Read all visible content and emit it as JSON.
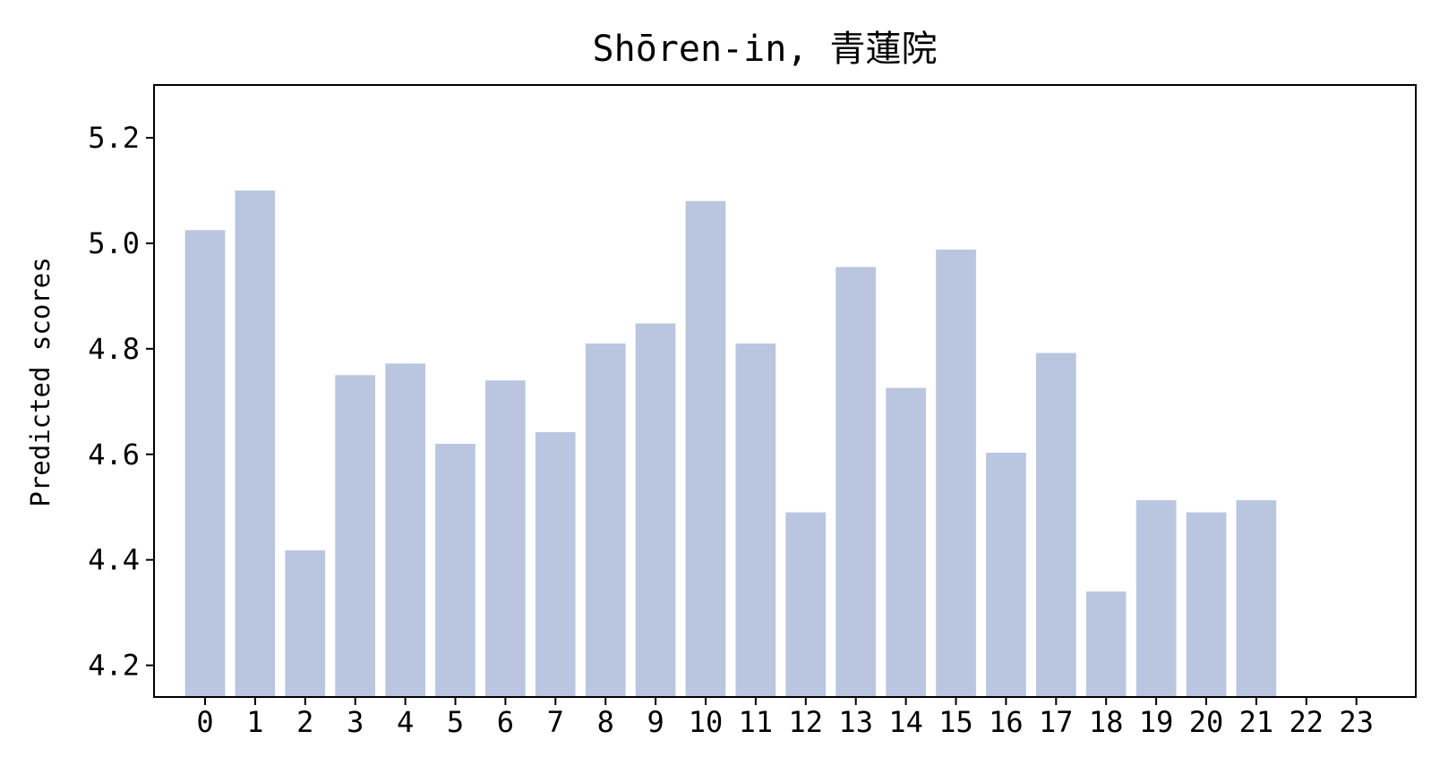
{
  "chart_data": {
    "type": "bar",
    "title": "Shōren-in, 青蓮院",
    "xlabel": "",
    "ylabel": "Predicted scores",
    "categories": [
      "0",
      "1",
      "2",
      "3",
      "4",
      "5",
      "6",
      "7",
      "8",
      "9",
      "10",
      "11",
      "12",
      "13",
      "14",
      "15",
      "16",
      "17",
      "18",
      "19",
      "20",
      "21",
      "22",
      "23"
    ],
    "values": [
      5.025,
      5.1,
      4.418,
      4.75,
      4.772,
      4.62,
      4.74,
      4.642,
      4.81,
      4.848,
      5.08,
      4.81,
      4.49,
      4.955,
      4.726,
      4.988,
      4.603,
      4.792,
      4.34,
      4.513,
      4.49,
      4.513,
      null,
      null
    ],
    "ylim": [
      4.14,
      5.3
    ],
    "yticks": [
      "4.2",
      "4.4",
      "4.6",
      "4.8",
      "5.0",
      "5.2"
    ],
    "bar_color": "#bac6e0",
    "grid": false,
    "legend": "none"
  }
}
